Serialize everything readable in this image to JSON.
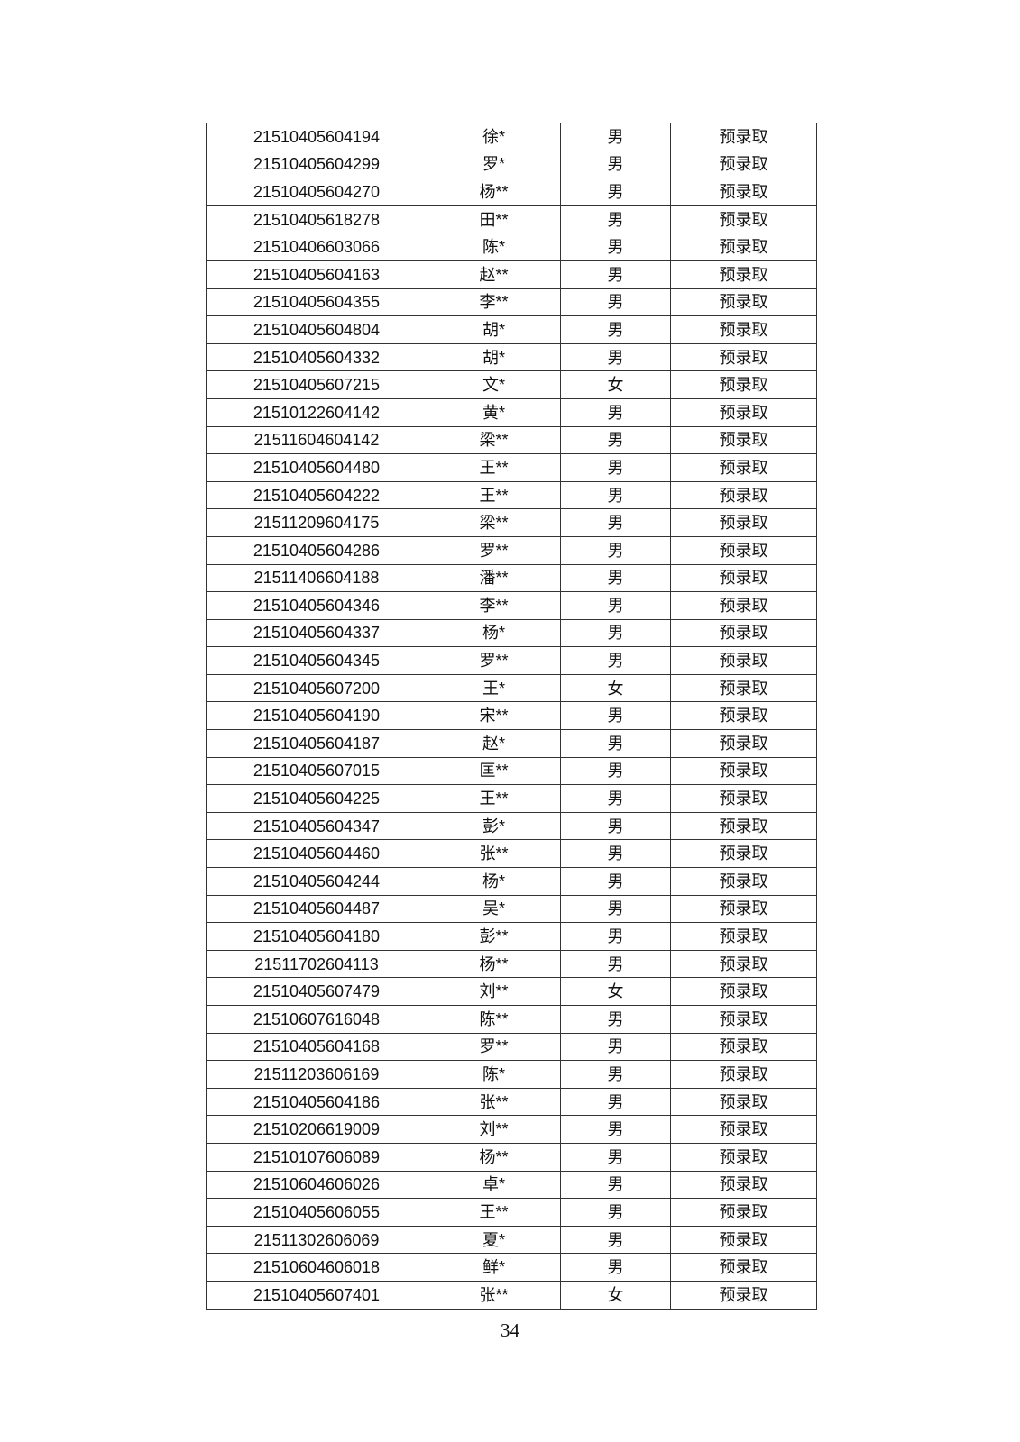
{
  "table": {
    "rows": [
      [
        "21510405604194",
        "徐*",
        "男",
        "预录取"
      ],
      [
        "21510405604299",
        "罗*",
        "男",
        "预录取"
      ],
      [
        "21510405604270",
        "杨**",
        "男",
        "预录取"
      ],
      [
        "21510405618278",
        "田**",
        "男",
        "预录取"
      ],
      [
        "21510406603066",
        "陈*",
        "男",
        "预录取"
      ],
      [
        "21510405604163",
        "赵**",
        "男",
        "预录取"
      ],
      [
        "21510405604355",
        "李**",
        "男",
        "预录取"
      ],
      [
        "21510405604804",
        "胡*",
        "男",
        "预录取"
      ],
      [
        "21510405604332",
        "胡*",
        "男",
        "预录取"
      ],
      [
        "21510405607215",
        "文*",
        "女",
        "预录取"
      ],
      [
        "21510122604142",
        "黄*",
        "男",
        "预录取"
      ],
      [
        "21511604604142",
        "梁**",
        "男",
        "预录取"
      ],
      [
        "21510405604480",
        "王**",
        "男",
        "预录取"
      ],
      [
        "21510405604222",
        "王**",
        "男",
        "预录取"
      ],
      [
        "21511209604175",
        "梁**",
        "男",
        "预录取"
      ],
      [
        "21510405604286",
        "罗**",
        "男",
        "预录取"
      ],
      [
        "21511406604188",
        "潘**",
        "男",
        "预录取"
      ],
      [
        "21510405604346",
        "李**",
        "男",
        "预录取"
      ],
      [
        "21510405604337",
        "杨*",
        "男",
        "预录取"
      ],
      [
        "21510405604345",
        "罗**",
        "男",
        "预录取"
      ],
      [
        "21510405607200",
        "王*",
        "女",
        "预录取"
      ],
      [
        "21510405604190",
        "宋**",
        "男",
        "预录取"
      ],
      [
        "21510405604187",
        "赵*",
        "男",
        "预录取"
      ],
      [
        "21510405607015",
        "匡**",
        "男",
        "预录取"
      ],
      [
        "21510405604225",
        "王**",
        "男",
        "预录取"
      ],
      [
        "21510405604347",
        "彭*",
        "男",
        "预录取"
      ],
      [
        "21510405604460",
        "张**",
        "男",
        "预录取"
      ],
      [
        "21510405604244",
        "杨*",
        "男",
        "预录取"
      ],
      [
        "21510405604487",
        "吴*",
        "男",
        "预录取"
      ],
      [
        "21510405604180",
        "彭**",
        "男",
        "预录取"
      ],
      [
        "21511702604113",
        "杨**",
        "男",
        "预录取"
      ],
      [
        "21510405607479",
        "刘**",
        "女",
        "预录取"
      ],
      [
        "21510607616048",
        "陈**",
        "男",
        "预录取"
      ],
      [
        "21510405604168",
        "罗**",
        "男",
        "预录取"
      ],
      [
        "21511203606169",
        "陈*",
        "男",
        "预录取"
      ],
      [
        "21510405604186",
        "张**",
        "男",
        "预录取"
      ],
      [
        "21510206619009",
        "刘**",
        "男",
        "预录取"
      ],
      [
        "21510107606089",
        "杨**",
        "男",
        "预录取"
      ],
      [
        "21510604606026",
        "卓*",
        "男",
        "预录取"
      ],
      [
        "21510405606055",
        "王**",
        "男",
        "预录取"
      ],
      [
        "21511302606069",
        "夏*",
        "男",
        "预录取"
      ],
      [
        "21510604606018",
        "鲜*",
        "男",
        "预录取"
      ],
      [
        "21510405607401",
        "张**",
        "女",
        "预录取"
      ]
    ]
  },
  "footer": {
    "page_number": "34"
  }
}
